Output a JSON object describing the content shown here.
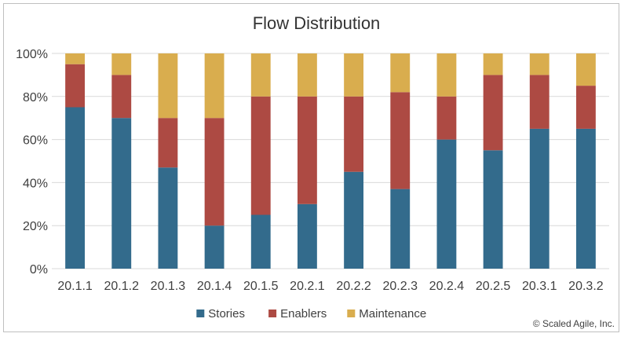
{
  "chart_data": {
    "type": "bar",
    "stacked": true,
    "title": "Flow Distribution",
    "categories": [
      "20.1.1",
      "20.1.2",
      "20.1.3",
      "20.1.4",
      "20.1.5",
      "20.2.1",
      "20.2.2",
      "20.2.3",
      "20.2.4",
      "20.2.5",
      "20.3.1",
      "20.3.2"
    ],
    "series": [
      {
        "name": "Stories",
        "color": "#336b8c",
        "values": [
          75,
          70,
          47,
          20,
          25,
          30,
          45,
          37,
          60,
          55,
          65,
          65
        ]
      },
      {
        "name": "Enablers",
        "color": "#ad4a43",
        "values": [
          20,
          20,
          23,
          50,
          55,
          50,
          35,
          45,
          20,
          35,
          25,
          20
        ]
      },
      {
        "name": "Maintenance",
        "color": "#d9ad4e",
        "values": [
          5,
          10,
          30,
          30,
          20,
          20,
          20,
          18,
          20,
          10,
          10,
          15
        ]
      }
    ],
    "yticks": [
      "0%",
      "20%",
      "40%",
      "60%",
      "80%",
      "100%"
    ],
    "ylim": [
      0,
      100
    ],
    "grid": true,
    "legend": "bottom",
    "xlabel": "",
    "ylabel": ""
  },
  "credit": "© Scaled Agile, Inc."
}
